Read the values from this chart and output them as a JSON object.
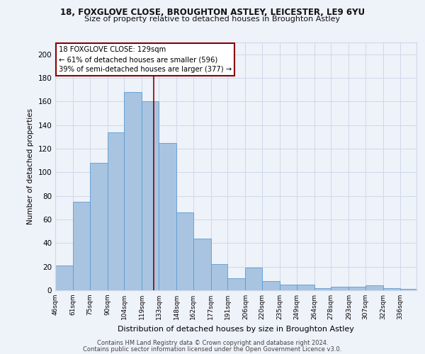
{
  "title1": "18, FOXGLOVE CLOSE, BROUGHTON ASTLEY, LEICESTER, LE9 6YU",
  "title2": "Size of property relative to detached houses in Broughton Astley",
  "xlabel": "Distribution of detached houses by size in Broughton Astley",
  "ylabel": "Number of detached properties",
  "bin_labels": [
    "46sqm",
    "61sqm",
    "75sqm",
    "90sqm",
    "104sqm",
    "119sqm",
    "133sqm",
    "148sqm",
    "162sqm",
    "177sqm",
    "191sqm",
    "206sqm",
    "220sqm",
    "235sqm",
    "249sqm",
    "264sqm",
    "278sqm",
    "293sqm",
    "307sqm",
    "322sqm",
    "336sqm"
  ],
  "bin_edges": [
    46,
    61,
    75,
    90,
    104,
    119,
    133,
    148,
    162,
    177,
    191,
    206,
    220,
    235,
    249,
    264,
    278,
    293,
    307,
    322,
    336,
    350
  ],
  "bar_values": [
    21,
    75,
    108,
    134,
    168,
    160,
    125,
    66,
    44,
    22,
    10,
    19,
    8,
    5,
    5,
    2,
    3,
    3,
    4,
    2,
    1
  ],
  "bar_color": "#a8c4e0",
  "bar_edge_color": "#5b9bd5",
  "property_value": 129,
  "vline_color": "#8b0000",
  "annotation_box_color": "#8b0000",
  "annotation_line1": "18 FOXGLOVE CLOSE: 129sqm",
  "annotation_line2": "← 61% of detached houses are smaller (596)",
  "annotation_line3": "39% of semi-detached houses are larger (377) →",
  "ylim": [
    0,
    210
  ],
  "yticks": [
    0,
    20,
    40,
    60,
    80,
    100,
    120,
    140,
    160,
    180,
    200
  ],
  "grid_color": "#d0d8e8",
  "footnote1": "Contains HM Land Registry data © Crown copyright and database right 2024.",
  "footnote2": "Contains public sector information licensed under the Open Government Licence v3.0.",
  "bg_color": "#eef2f9"
}
